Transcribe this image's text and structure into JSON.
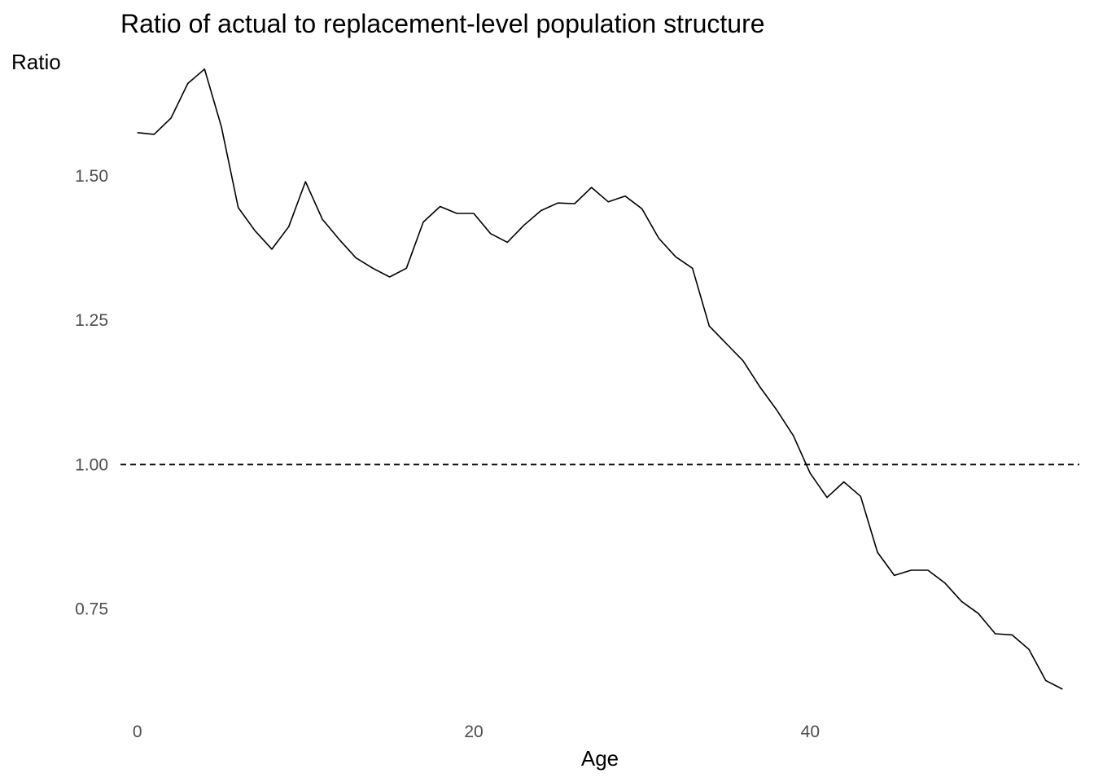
{
  "chart_data": {
    "type": "line",
    "title": "Ratio of actual to replacement-level population structure",
    "xlabel": "Age",
    "ylabel": "Ratio",
    "xlim": [
      -1,
      56
    ],
    "ylim": [
      0.58,
      1.72
    ],
    "x_ticks": [
      0,
      20,
      40
    ],
    "x_tick_labels": [
      "0",
      "20",
      "40"
    ],
    "y_ticks": [
      0.75,
      1.0,
      1.25,
      1.5
    ],
    "y_tick_labels": [
      "0.75",
      "1.00",
      "1.25",
      "1.50"
    ],
    "grid": false,
    "reference_line": {
      "y": 1.0,
      "style": "dashed"
    },
    "series": [
      {
        "x": [
          0,
          1,
          2,
          3,
          4,
          5,
          6,
          7,
          8,
          9,
          10,
          11,
          12,
          13,
          14,
          15,
          16,
          17,
          18,
          19,
          20,
          21,
          22,
          23,
          24,
          25,
          26,
          27,
          28,
          29,
          30,
          31,
          32,
          33,
          34,
          35,
          36,
          37,
          38,
          39,
          40,
          41,
          42,
          43,
          44,
          45,
          46,
          47,
          48,
          49,
          50,
          51,
          52,
          53,
          54,
          55
        ],
        "values": [
          1.575,
          1.572,
          1.6,
          1.66,
          1.685,
          1.585,
          1.445,
          1.405,
          1.373,
          1.412,
          1.49,
          1.425,
          1.39,
          1.358,
          1.34,
          1.325,
          1.34,
          1.42,
          1.447,
          1.435,
          1.435,
          1.4,
          1.385,
          1.415,
          1.44,
          1.453,
          1.452,
          1.48,
          1.455,
          1.465,
          1.443,
          1.392,
          1.36,
          1.34,
          1.24,
          1.21,
          1.18,
          1.135,
          1.095,
          1.05,
          0.985,
          0.943,
          0.97,
          0.945,
          0.848,
          0.808,
          0.817,
          0.817,
          0.795,
          0.763,
          0.742,
          0.707,
          0.705,
          0.68,
          0.626,
          0.611
        ]
      }
    ]
  }
}
